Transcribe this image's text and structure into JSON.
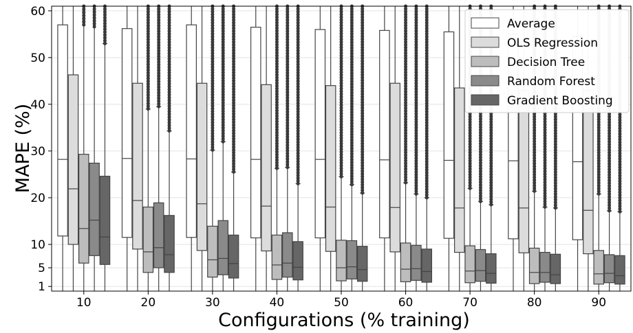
{
  "chart_data": {
    "type": "box",
    "xlabel": "Configurations (% training)",
    "ylabel": "MAPE (%)",
    "ylim": [
      0,
      61
    ],
    "y_ticks": [
      1,
      5,
      10,
      20,
      30,
      40,
      50,
      60
    ],
    "categories": [
      "10",
      "20",
      "30",
      "40",
      "50",
      "60",
      "70",
      "80",
      "90"
    ],
    "grid": true,
    "legend_position": "top-right",
    "series": [
      {
        "name": "Average",
        "color": "#ffffff",
        "boxes": [
          {
            "q1": 11.8,
            "median": 28.2,
            "q3": 57.0,
            "whisker_low": 0,
            "whisker_high": 61,
            "outliers": false
          },
          {
            "q1": 11.5,
            "median": 28.4,
            "q3": 56.2,
            "whisker_low": 0,
            "whisker_high": 61,
            "outliers": false
          },
          {
            "q1": 11.5,
            "median": 28.3,
            "q3": 57.0,
            "whisker_low": 0,
            "whisker_high": 61,
            "outliers": false
          },
          {
            "q1": 11.4,
            "median": 28.2,
            "q3": 56.5,
            "whisker_low": 0,
            "whisker_high": 61,
            "outliers": false
          },
          {
            "q1": 11.4,
            "median": 28.2,
            "q3": 56.0,
            "whisker_low": 0,
            "whisker_high": 61,
            "outliers": false
          },
          {
            "q1": 11.4,
            "median": 28.1,
            "q3": 55.8,
            "whisker_low": 0,
            "whisker_high": 61,
            "outliers": false
          },
          {
            "q1": 11.3,
            "median": 28.0,
            "q3": 55.5,
            "whisker_low": 0,
            "whisker_high": 61,
            "outliers": false
          },
          {
            "q1": 11.2,
            "median": 27.9,
            "q3": 55.0,
            "whisker_low": 0,
            "whisker_high": 61,
            "outliers": false
          },
          {
            "q1": 11.0,
            "median": 27.7,
            "q3": 54.5,
            "whisker_low": 0,
            "whisker_high": 61,
            "outliers": false
          }
        ]
      },
      {
        "name": "OLS Regression",
        "color": "#dcdcdc",
        "boxes": [
          {
            "q1": 10.0,
            "median": 21.9,
            "q3": 46.3,
            "whisker_low": 0,
            "whisker_high": 61,
            "outliers": false
          },
          {
            "q1": 9.0,
            "median": 19.4,
            "q3": 44.5,
            "whisker_low": 0,
            "whisker_high": 61,
            "outliers": false
          },
          {
            "q1": 8.7,
            "median": 18.7,
            "q3": 44.5,
            "whisker_low": 0,
            "whisker_high": 61,
            "outliers": false
          },
          {
            "q1": 8.6,
            "median": 18.2,
            "q3": 44.2,
            "whisker_low": 0,
            "whisker_high": 61,
            "outliers": false
          },
          {
            "q1": 8.5,
            "median": 18.0,
            "q3": 44.0,
            "whisker_low": 0,
            "whisker_high": 61,
            "outliers": false
          },
          {
            "q1": 8.4,
            "median": 17.9,
            "q3": 44.5,
            "whisker_low": 0,
            "whisker_high": 61,
            "outliers": false
          },
          {
            "q1": 8.3,
            "median": 17.8,
            "q3": 43.5,
            "whisker_low": 0,
            "whisker_high": 61,
            "outliers": false
          },
          {
            "q1": 8.2,
            "median": 17.8,
            "q3": 43.0,
            "whisker_low": 0,
            "whisker_high": 61,
            "outliers": false
          },
          {
            "q1": 8.0,
            "median": 17.3,
            "q3": 43.0,
            "whisker_low": 0,
            "whisker_high": 61,
            "outliers": false
          }
        ]
      },
      {
        "name": "Decision Tree",
        "color": "#bdbdbd",
        "boxes": [
          {
            "q1": 6.0,
            "median": 13.4,
            "q3": 29.3,
            "whisker_low": 0,
            "whisker_high": 61,
            "outliers": true,
            "outlier_start": 57.0
          },
          {
            "q1": 4.0,
            "median": 8.4,
            "q3": 18.0,
            "whisker_low": 0,
            "whisker_high": 39.0,
            "outliers": true,
            "outlier_start": 39.0
          },
          {
            "q1": 3.0,
            "median": 6.7,
            "q3": 13.9,
            "whisker_low": 0,
            "whisker_high": 30.2,
            "outliers": true,
            "outlier_start": 30.2
          },
          {
            "q1": 2.5,
            "median": 5.6,
            "q3": 12.0,
            "whisker_low": 0,
            "whisker_high": 26.3,
            "outliers": true,
            "outlier_start": 26.3
          },
          {
            "q1": 2.2,
            "median": 5.0,
            "q3": 10.9,
            "whisker_low": 0,
            "whisker_high": 24.5,
            "outliers": true,
            "outlier_start": 24.5
          },
          {
            "q1": 2.0,
            "median": 4.7,
            "q3": 10.3,
            "whisker_low": 0,
            "whisker_high": 23.2,
            "outliers": true,
            "outlier_start": 23.2
          },
          {
            "q1": 1.8,
            "median": 4.3,
            "q3": 9.7,
            "whisker_low": 0,
            "whisker_high": 22.0,
            "outliers": true,
            "outlier_start": 22.0
          },
          {
            "q1": 1.6,
            "median": 4.0,
            "q3": 9.2,
            "whisker_low": 0,
            "whisker_high": 21.4,
            "outliers": true,
            "outlier_start": 21.4
          },
          {
            "q1": 1.5,
            "median": 3.7,
            "q3": 8.7,
            "whisker_low": 0,
            "whisker_high": 20.8,
            "outliers": true,
            "outlier_start": 20.8
          }
        ]
      },
      {
        "name": "Random Forest",
        "color": "#8a8a8a",
        "boxes": [
          {
            "q1": 7.6,
            "median": 15.2,
            "q3": 27.4,
            "whisker_low": 0,
            "whisker_high": 61,
            "outliers": true,
            "outlier_start": 56.6
          },
          {
            "q1": 5.0,
            "median": 9.3,
            "q3": 18.9,
            "whisker_low": 0,
            "whisker_high": 39.5,
            "outliers": true,
            "outlier_start": 39.5
          },
          {
            "q1": 3.5,
            "median": 7.0,
            "q3": 15.1,
            "whisker_low": 0,
            "whisker_high": 32.0,
            "outliers": true,
            "outlier_start": 32.0
          },
          {
            "q1": 3.0,
            "median": 6.0,
            "q3": 12.5,
            "whisker_low": 0,
            "whisker_high": 26.5,
            "outliers": true,
            "outlier_start": 26.5
          },
          {
            "q1": 2.6,
            "median": 5.2,
            "q3": 10.8,
            "whisker_low": 0,
            "whisker_high": 22.8,
            "outliers": true,
            "outlier_start": 22.8
          },
          {
            "q1": 2.3,
            "median": 4.8,
            "q3": 9.8,
            "whisker_low": 0,
            "whisker_high": 20.8,
            "outliers": true,
            "outlier_start": 20.8
          },
          {
            "q1": 2.1,
            "median": 4.4,
            "q3": 8.9,
            "whisker_low": 0,
            "whisker_high": 19.2,
            "outliers": true,
            "outlier_start": 19.2
          },
          {
            "q1": 1.9,
            "median": 4.0,
            "q3": 8.3,
            "whisker_low": 0,
            "whisker_high": 18.0,
            "outliers": true,
            "outlier_start": 18.0
          },
          {
            "q1": 1.8,
            "median": 3.8,
            "q3": 7.8,
            "whisker_low": 0,
            "whisker_high": 17.2,
            "outliers": true,
            "outlier_start": 17.2
          }
        ]
      },
      {
        "name": "Gradient Boosting",
        "color": "#666666",
        "boxes": [
          {
            "q1": 5.7,
            "median": 11.6,
            "q3": 24.6,
            "whisker_low": 0,
            "whisker_high": 53.0,
            "outliers": true,
            "outlier_start": 53.0
          },
          {
            "q1": 4.0,
            "median": 7.8,
            "q3": 16.2,
            "whisker_low": 0,
            "whisker_high": 34.3,
            "outliers": true,
            "outlier_start": 34.3
          },
          {
            "q1": 2.8,
            "median": 5.9,
            "q3": 12.0,
            "whisker_low": 0,
            "whisker_high": 25.5,
            "outliers": true,
            "outlier_start": 25.5
          },
          {
            "q1": 2.4,
            "median": 5.1,
            "q3": 10.6,
            "whisker_low": 0,
            "whisker_high": 23.0,
            "outliers": true,
            "outlier_start": 23.0
          },
          {
            "q1": 2.1,
            "median": 4.6,
            "q3": 9.6,
            "whisker_low": 0,
            "whisker_high": 21.0,
            "outliers": true,
            "outlier_start": 21.0
          },
          {
            "q1": 1.9,
            "median": 4.2,
            "q3": 9.0,
            "whisker_low": 0,
            "whisker_high": 20.0,
            "outliers": true,
            "outlier_start": 20.0
          },
          {
            "q1": 1.7,
            "median": 3.8,
            "q3": 8.0,
            "whisker_low": 0,
            "whisker_high": 18.5,
            "outliers": true,
            "outlier_start": 18.5
          },
          {
            "q1": 1.6,
            "median": 3.5,
            "q3": 7.9,
            "whisker_low": 0,
            "whisker_high": 17.8,
            "outliers": true,
            "outlier_start": 17.8
          },
          {
            "q1": 1.5,
            "median": 3.3,
            "q3": 7.6,
            "whisker_low": 0,
            "whisker_high": 17.0,
            "outliers": true,
            "outlier_start": 17.0
          }
        ]
      }
    ]
  }
}
